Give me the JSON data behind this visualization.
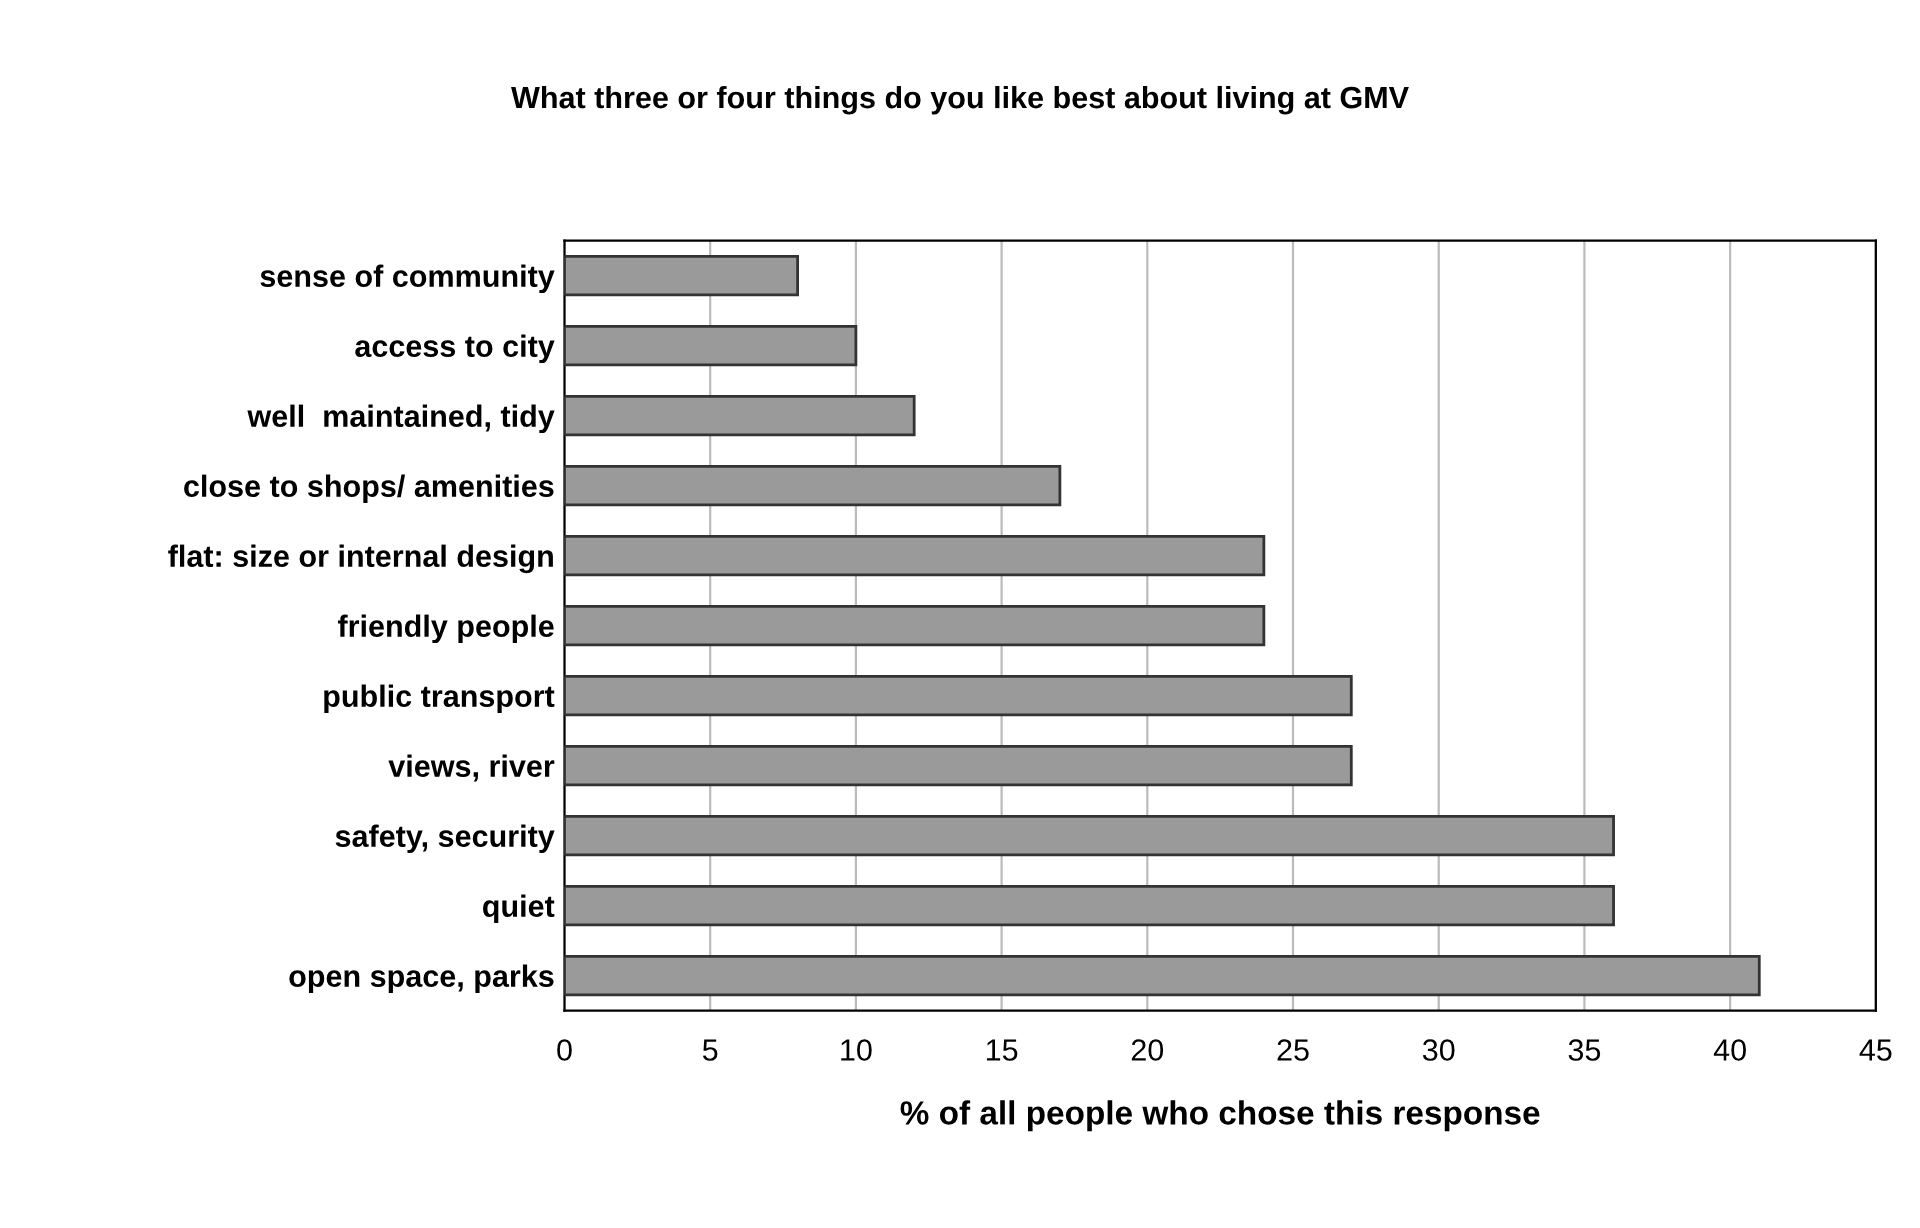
{
  "chart_data": {
    "type": "bar",
    "orientation": "horizontal",
    "title": "What three or four things do you like best about living at GMV",
    "xlabel": "% of all people who chose this response",
    "categories": [
      "sense of community",
      "access to city",
      "well  maintained, tidy",
      "close to shops/ amenities",
      "flat: size or internal design",
      "friendly people",
      "public transport",
      "views, river",
      "safety, security",
      "quiet",
      "open space, parks"
    ],
    "values": [
      8,
      10,
      12,
      17,
      24,
      24,
      27,
      27,
      36,
      36,
      41
    ],
    "color": "#9a9a9a",
    "xlim": [
      0,
      45
    ],
    "xticks": [
      0,
      5,
      10,
      15,
      20,
      25,
      30,
      35,
      40,
      45
    ],
    "grid": "x",
    "legend": false
  }
}
